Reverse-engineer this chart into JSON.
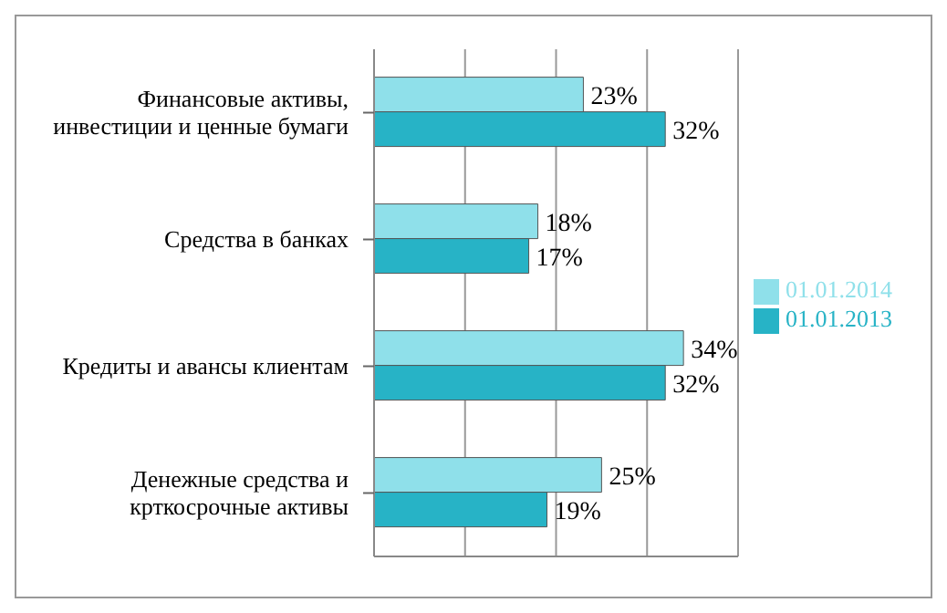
{
  "chart_data": {
    "type": "bar",
    "orientation": "horizontal",
    "categories": [
      "Финансовые активы, инвестиции и ценные бумаги",
      "Средства в банках",
      "Кредиты и авансы клиентам",
      "Денежные средства и крткосрочные активы"
    ],
    "series": [
      {
        "name": "01.01.2014",
        "color": "#8fe0ea",
        "values": [
          23,
          18,
          34,
          25
        ],
        "value_labels": [
          "23%",
          "18%",
          "34%",
          "25%"
        ]
      },
      {
        "name": "01.01.2013",
        "color": "#27b3c6",
        "values": [
          32,
          17,
          32,
          19
        ],
        "value_labels": [
          "32%",
          "17%",
          "32%",
          "19%"
        ]
      }
    ],
    "xlim": [
      0,
      40
    ],
    "tick_labels": "y",
    "grid": "x",
    "legend": "right"
  }
}
